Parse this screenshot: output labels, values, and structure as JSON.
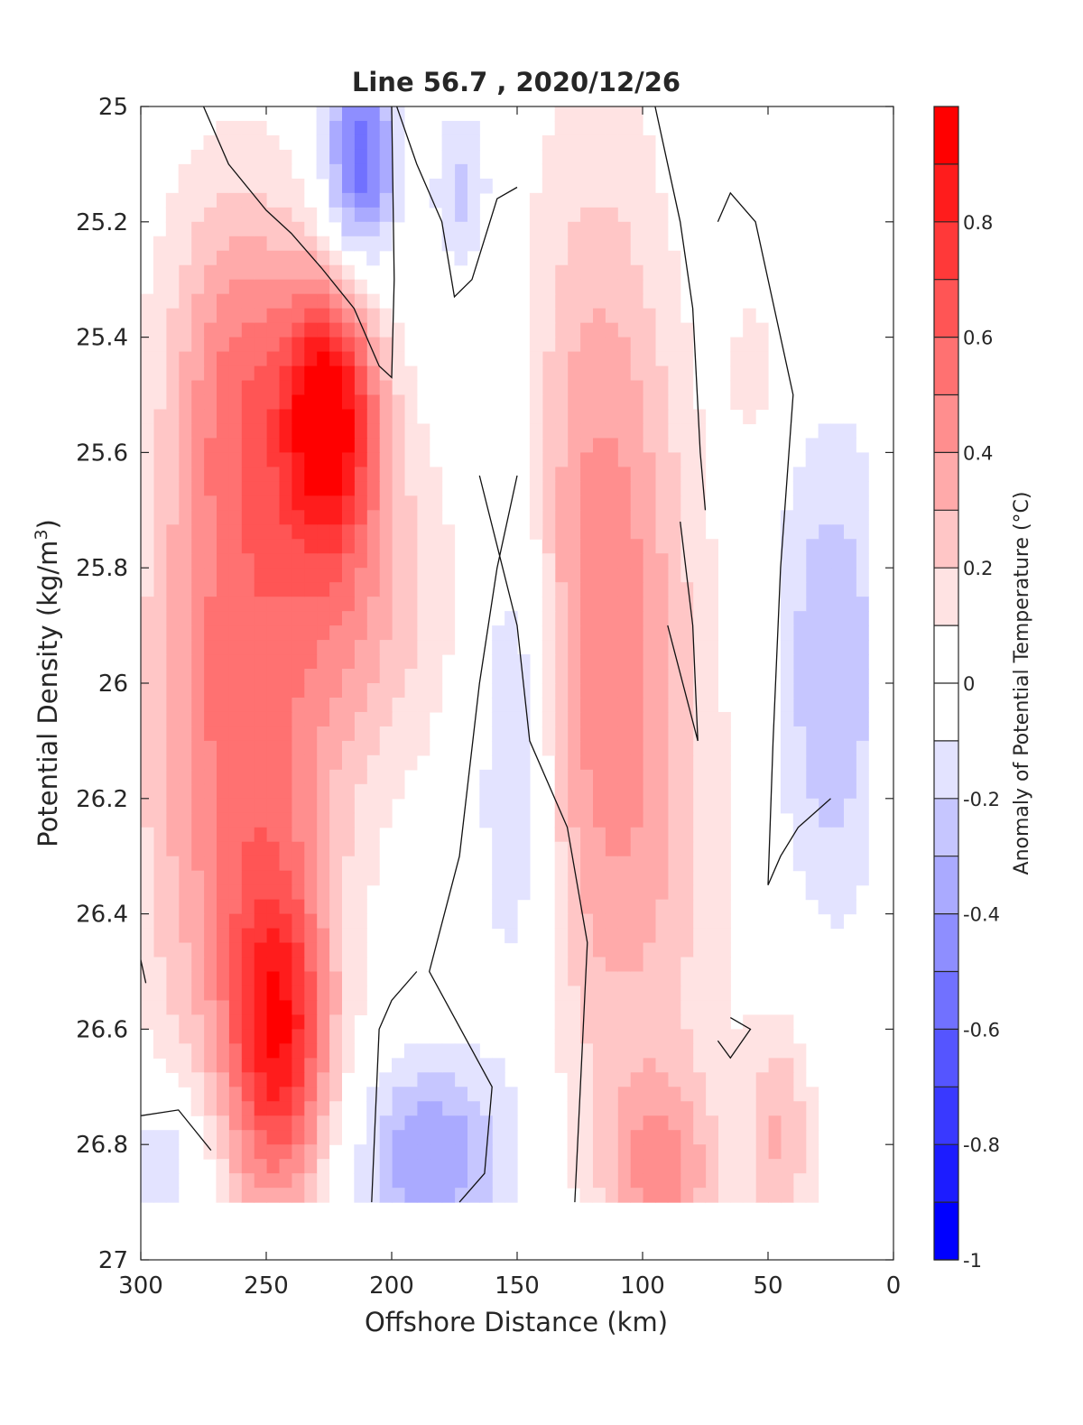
{
  "chart_data": {
    "type": "heatmap",
    "subtype": "filled-contour",
    "title": "Line 56.7 , 2020/12/26",
    "xlabel": "Offshore Distance (km)",
    "ylabel": {
      "prefix": "Potential Density (kg/m",
      "sup": "3",
      "suffix": ")"
    },
    "xlim": [
      0,
      300
    ],
    "x_reversed": true,
    "ylim": [
      25,
      27
    ],
    "y_reversed": true,
    "x_ticks": [
      {
        "value": 300,
        "label": "300"
      },
      {
        "value": 250,
        "label": "250"
      },
      {
        "value": 200,
        "label": "200"
      },
      {
        "value": 150,
        "label": "150"
      },
      {
        "value": 100,
        "label": "100"
      },
      {
        "value": 50,
        "label": "50"
      },
      {
        "value": 0,
        "label": "0"
      }
    ],
    "y_ticks": [
      {
        "value": 25,
        "label": "25"
      },
      {
        "value": 25.2,
        "label": "25.2"
      },
      {
        "value": 25.4,
        "label": "25.4"
      },
      {
        "value": 25.6,
        "label": "25.6"
      },
      {
        "value": 25.8,
        "label": "25.8"
      },
      {
        "value": 26,
        "label": "26"
      },
      {
        "value": 26.2,
        "label": "26.2"
      },
      {
        "value": 26.4,
        "label": "26.4"
      },
      {
        "value": 26.6,
        "label": "26.6"
      },
      {
        "value": 26.8,
        "label": "26.8"
      },
      {
        "value": 27,
        "label": "27"
      }
    ],
    "colorbar": {
      "label": "Anomaly of Potential Temperature (°C)",
      "range": [
        -1,
        1
      ],
      "tick_labels": [
        {
          "value": -1,
          "label": "-1"
        },
        {
          "value": -0.8,
          "label": "-0.8"
        },
        {
          "value": -0.6,
          "label": "-0.6"
        },
        {
          "value": -0.4,
          "label": "-0.4"
        },
        {
          "value": -0.2,
          "label": "-0.2"
        },
        {
          "value": 0,
          "label": "0"
        },
        {
          "value": 0.2,
          "label": "0.2"
        },
        {
          "value": 0.4,
          "label": "0.4"
        },
        {
          "value": 0.6,
          "label": "0.6"
        },
        {
          "value": 0.8,
          "label": "0.8"
        }
      ],
      "minor_ticks": [
        -0.9,
        -0.7,
        -0.5,
        -0.3,
        -0.1,
        0.1,
        0.3,
        0.5,
        0.7,
        0.9
      ],
      "levels": [
        {
          "min": -1.0,
          "max": -0.9,
          "color": "#0000ff"
        },
        {
          "min": -0.9,
          "max": -0.8,
          "color": "#1c1cff"
        },
        {
          "min": -0.8,
          "max": -0.7,
          "color": "#3939ff"
        },
        {
          "min": -0.7,
          "max": -0.6,
          "color": "#5555ff"
        },
        {
          "min": -0.6,
          "max": -0.5,
          "color": "#7171ff"
        },
        {
          "min": -0.5,
          "max": -0.4,
          "color": "#8e8eff"
        },
        {
          "min": -0.4,
          "max": -0.3,
          "color": "#aaaaff"
        },
        {
          "min": -0.3,
          "max": -0.2,
          "color": "#c6c6ff"
        },
        {
          "min": -0.2,
          "max": -0.1,
          "color": "#e3e3ff"
        },
        {
          "min": -0.1,
          "max": 0.1,
          "color": "#ffffff"
        },
        {
          "min": 0.1,
          "max": 0.2,
          "color": "#ffe3e3"
        },
        {
          "min": 0.2,
          "max": 0.3,
          "color": "#ffc6c6"
        },
        {
          "min": 0.3,
          "max": 0.4,
          "color": "#ffaaaa"
        },
        {
          "min": 0.4,
          "max": 0.5,
          "color": "#ff8e8e"
        },
        {
          "min": 0.5,
          "max": 0.6,
          "color": "#ff7171"
        },
        {
          "min": 0.6,
          "max": 0.7,
          "color": "#ff5555"
        },
        {
          "min": 0.7,
          "max": 0.8,
          "color": "#ff3939"
        },
        {
          "min": 0.8,
          "max": 0.9,
          "color": "#ff1c1c"
        },
        {
          "min": 0.9,
          "max": 1.0,
          "color": "#ff0000"
        }
      ]
    },
    "data_extent": {
      "x": [
        10,
        300
      ],
      "y": [
        25.0,
        26.9
      ]
    },
    "anomaly_features": [
      {
        "name": "warm core",
        "x": 225,
        "y": 25.52,
        "peak": 0.85,
        "sx": 14,
        "sy": 0.17
      },
      {
        "name": "warm core shoulder",
        "x": 262,
        "y": 25.45,
        "peak": 0.25,
        "sx": 16,
        "sy": 0.2
      },
      {
        "name": "warm offshore band",
        "x": 262,
        "y": 25.95,
        "peak": 0.42,
        "sx": 26,
        "sy": 0.5
      },
      {
        "name": "warm tongue",
        "x": 213,
        "y": 25.85,
        "peak": 0.28,
        "sx": 26,
        "sy": 0.22
      },
      {
        "name": "warm deep lobe",
        "x": 245,
        "y": 26.62,
        "peak": 0.68,
        "sx": 14,
        "sy": 0.2
      },
      {
        "name": "warm deep halo",
        "x": 258,
        "y": 26.35,
        "peak": 0.15,
        "sx": 30,
        "sy": 0.45
      },
      {
        "name": "cold upper lobe",
        "x": 213,
        "y": 25.1,
        "peak": -0.6,
        "sx": 10,
        "sy": 0.14
      },
      {
        "name": "cold small upper",
        "x": 172,
        "y": 25.15,
        "peak": -0.25,
        "sx": 8,
        "sy": 0.1
      },
      {
        "name": "warm inshore band",
        "x": 118,
        "y": 25.75,
        "peak": 0.38,
        "sx": 22,
        "sy": 0.5
      },
      {
        "name": "warm inshore column",
        "x": 100,
        "y": 26.3,
        "peak": 0.22,
        "sx": 26,
        "sy": 0.45
      },
      {
        "name": "warm inshore deep",
        "x": 92,
        "y": 26.85,
        "peak": 0.35,
        "sx": 16,
        "sy": 0.12
      },
      {
        "name": "warm near-shore deep",
        "x": 45,
        "y": 26.78,
        "peak": 0.3,
        "sx": 10,
        "sy": 0.14
      },
      {
        "name": "warm near-shore patch",
        "x": 55,
        "y": 25.45,
        "peak": 0.15,
        "sx": 8,
        "sy": 0.1
      },
      {
        "name": "cold mid column",
        "x": 150,
        "y": 26.1,
        "peak": -0.32,
        "sx": 11,
        "sy": 0.32
      },
      {
        "name": "cold deep mid",
        "x": 185,
        "y": 26.82,
        "peak": -0.4,
        "sx": 22,
        "sy": 0.12
      },
      {
        "name": "cold near-shore",
        "x": 25,
        "y": 25.98,
        "peak": -0.3,
        "sx": 16,
        "sy": 0.3
      },
      {
        "name": "cold offshore deep",
        "x": 290,
        "y": 26.82,
        "peak": -0.25,
        "sx": 14,
        "sy": 0.1
      }
    ],
    "zero_contours": [
      [
        [
          275,
          25.0
        ],
        [
          265,
          25.1
        ],
        [
          250,
          25.18
        ],
        [
          240,
          25.22
        ],
        [
          228,
          25.28
        ],
        [
          215,
          25.35
        ],
        [
          205,
          25.45
        ],
        [
          200,
          25.47
        ],
        [
          199,
          25.3
        ],
        [
          200,
          25.0
        ]
      ],
      [
        [
          198,
          25.0
        ],
        [
          190,
          25.1
        ],
        [
          180,
          25.2
        ],
        [
          175,
          25.33
        ],
        [
          168,
          25.3
        ],
        [
          158,
          25.16
        ],
        [
          150,
          25.14
        ]
      ],
      [
        [
          165,
          25.64
        ],
        [
          150,
          25.9
        ],
        [
          145,
          26.1
        ],
        [
          130,
          26.25
        ],
        [
          122,
          26.45
        ],
        [
          127,
          26.9
        ]
      ],
      [
        [
          150,
          25.64
        ],
        [
          158,
          25.8
        ],
        [
          165,
          26.0
        ],
        [
          173,
          26.3
        ],
        [
          185,
          26.5
        ],
        [
          170,
          26.62
        ],
        [
          160,
          26.7
        ],
        [
          163,
          26.85
        ],
        [
          173,
          26.9
        ]
      ],
      [
        [
          208,
          26.9
        ],
        [
          205,
          26.6
        ],
        [
          200,
          26.55
        ],
        [
          190,
          26.5
        ]
      ],
      [
        [
          95,
          25.0
        ],
        [
          85,
          25.2
        ],
        [
          80,
          25.35
        ],
        [
          77,
          25.6
        ],
        [
          75,
          25.7
        ]
      ],
      [
        [
          70,
          25.2
        ],
        [
          65,
          25.15
        ],
        [
          55,
          25.2
        ],
        [
          40,
          25.5
        ],
        [
          45,
          25.8
        ],
        [
          48,
          26.1
        ],
        [
          50,
          26.35
        ],
        [
          45,
          26.3
        ],
        [
          38,
          26.25
        ],
        [
          25,
          26.2
        ]
      ],
      [
        [
          85,
          25.72
        ],
        [
          80,
          25.9
        ],
        [
          78,
          26.1
        ],
        [
          90,
          25.9
        ]
      ],
      [
        [
          65,
          26.58
        ],
        [
          57,
          26.6
        ],
        [
          65,
          26.65
        ],
        [
          70,
          26.62
        ]
      ],
      [
        [
          300,
          26.48
        ],
        [
          298,
          26.52
        ]
      ],
      [
        [
          300,
          26.75
        ],
        [
          285,
          26.74
        ],
        [
          272,
          26.81
        ]
      ]
    ]
  }
}
